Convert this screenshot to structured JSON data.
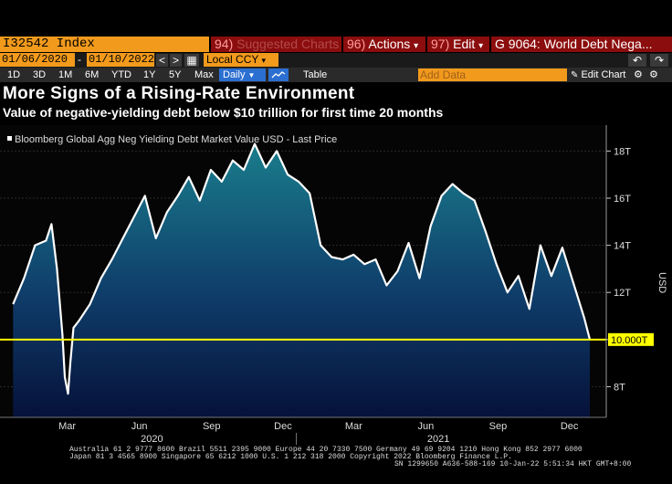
{
  "toolbar": {
    "ticker": "I32542 Index",
    "suggested": {
      "num": "94)",
      "label": "Suggested Charts"
    },
    "actions": {
      "num": "96)",
      "label": "Actions",
      "caret": "▾"
    },
    "edit": {
      "num": "97)",
      "label": "Edit",
      "caret": "▾"
    },
    "chart_title": "G 9064: World Debt Nega..."
  },
  "datebar": {
    "start": "01/06/2020",
    "dash": "-",
    "end": "01/10/2022",
    "prev": "<",
    "next": ">",
    "calendar": "▦",
    "currency": "Local CCY",
    "currency_caret": "▾",
    "undo": "↶",
    "redo": "↷"
  },
  "rangebar": {
    "ranges": [
      "1D",
      "3D",
      "1M",
      "6M",
      "YTD",
      "1Y",
      "5Y",
      "Max"
    ],
    "frequency": "Daily",
    "frequency_caret": "▼",
    "table": "Table",
    "add_data_placeholder": "Add Data",
    "edit_chart": "Edit Chart",
    "edit_chart_icon": "pencil-icon",
    "settings_icon": "gear-icon",
    "settings2_icon": "gear-icon"
  },
  "title": "More Signs of a Rising-Rate Environment",
  "subtitle": "Value of negative-yielding debt below $10 trillion for first time 20 months",
  "colors": {
    "orange": "#f29a1c",
    "red_tab": "#8b0d0d",
    "blue": "#2b6fd1",
    "line": "#ffffff",
    "threshold": "#ffff00",
    "fill_top": "#1a7d8c",
    "fill_bottom": "#06123a"
  },
  "chart_data": {
    "type": "area",
    "legend": "Bloomberg Global Agg Neg Yielding Debt Market Value USD - Last Price",
    "ylabel": "USD",
    "y_ticks": [
      "8T",
      "10T",
      "12T",
      "14T",
      "16T",
      "18T"
    ],
    "y_tick_values": [
      8,
      10,
      12,
      14,
      16,
      18
    ],
    "ylim": [
      6.7,
      19.1
    ],
    "x_month_labels": [
      "Mar",
      "Jun",
      "Sep",
      "Dec",
      "Mar",
      "Jun",
      "Sep",
      "Dec"
    ],
    "x_year_labels": [
      "2020",
      "2021"
    ],
    "threshold": {
      "value": 10.0,
      "label": "10.000T"
    },
    "series": [
      {
        "x": [
          "2020-01-06",
          "2020-01-20",
          "2020-02-03",
          "2020-02-17",
          "2020-02-24",
          "2020-03-02",
          "2020-03-09",
          "2020-03-12",
          "2020-03-16",
          "2020-03-19",
          "2020-03-23",
          "2020-03-30",
          "2020-04-13",
          "2020-04-27",
          "2020-05-11",
          "2020-05-25",
          "2020-06-08",
          "2020-06-22",
          "2020-07-06",
          "2020-07-20",
          "2020-08-03",
          "2020-08-17",
          "2020-08-31",
          "2020-09-14",
          "2020-09-28",
          "2020-10-12",
          "2020-10-26",
          "2020-11-09",
          "2020-11-23",
          "2020-12-07",
          "2020-12-21",
          "2021-01-04",
          "2021-01-18",
          "2021-02-01",
          "2021-02-15",
          "2021-03-01",
          "2021-03-15",
          "2021-03-29",
          "2021-04-12",
          "2021-04-26",
          "2021-05-10",
          "2021-05-24",
          "2021-06-07",
          "2021-06-21",
          "2021-07-05",
          "2021-07-19",
          "2021-08-02",
          "2021-08-16",
          "2021-08-30",
          "2021-09-13",
          "2021-09-27",
          "2021-10-11",
          "2021-10-25",
          "2021-11-08",
          "2021-11-22",
          "2021-12-06",
          "2021-12-20",
          "2022-01-03",
          "2022-01-10"
        ],
        "values": [
          11.5,
          12.6,
          14.0,
          14.2,
          14.9,
          13.0,
          10.2,
          8.4,
          7.7,
          9.0,
          10.5,
          10.8,
          11.5,
          12.6,
          13.4,
          14.3,
          15.2,
          16.1,
          14.3,
          15.4,
          16.1,
          16.9,
          15.9,
          17.2,
          16.7,
          17.6,
          17.2,
          18.3,
          17.3,
          18.0,
          17.0,
          16.7,
          16.2,
          14.0,
          13.5,
          13.4,
          13.6,
          13.2,
          13.4,
          12.3,
          12.9,
          14.1,
          12.6,
          14.8,
          16.1,
          16.6,
          16.2,
          15.9,
          14.6,
          13.2,
          12.0,
          12.7,
          11.3,
          14.0,
          12.7,
          13.9,
          12.4,
          10.9,
          10.0
        ]
      }
    ]
  },
  "footer": {
    "line1": "Australia 61 2 9777 8600 Brazil 5511 2395 9000 Europe 44 20 7330 7500 Germany 49 69 9204 1210 Hong Kong 852 2977 6000",
    "line2": "Japan 81 3 4565 8900       Singapore 65 6212 1000        U.S. 1 212 318 2000              Copyright 2022 Bloomberg Finance L.P.",
    "line3": "SN 1299650 A636-588-169 10-Jan-22  5:51:34 HKT  GMT+8:00"
  }
}
